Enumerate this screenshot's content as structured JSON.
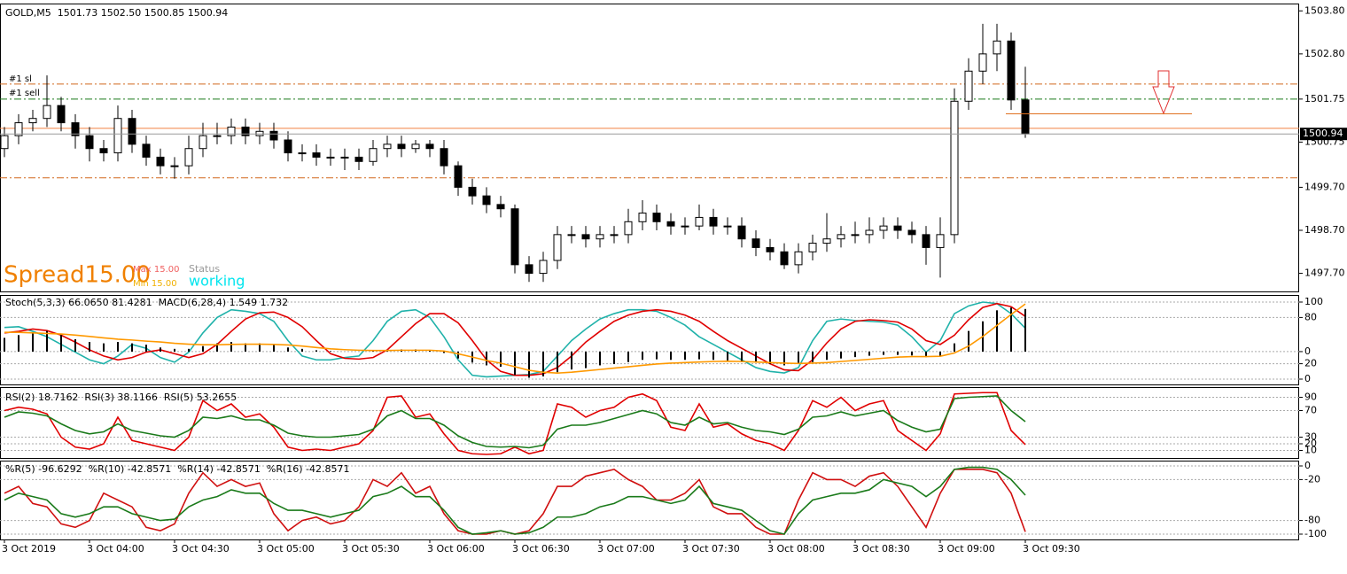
{
  "chart_data": [
    {
      "type": "candlestick",
      "header": "GOLD,M5  1501.73 1502.50 1500.85 1500.94",
      "order_labels": [
        "#1 sl",
        "#1 sell"
      ],
      "spread": "Spread15.00",
      "max": "Max 15.00",
      "min": "Min 15.00",
      "status": "Status",
      "status_value": "working",
      "ylim": [
        1497.3,
        1503.95
      ],
      "yticks": [
        {
          "value": 1503.8,
          "label": "1503.80"
        },
        {
          "value": 1502.8,
          "label": "1502.80"
        },
        1501.75,
        1500.75,
        {
          "value": 1499.7,
          "label": "1499.70"
        },
        {
          "value": 1498.7,
          "label": "1498.70"
        },
        {
          "value": 1497.7,
          "label": "1497.70"
        }
      ],
      "levels": [
        {
          "value": 1502.1,
          "color": "#d2691e",
          "style": "dashdot"
        },
        {
          "value": 1501.75,
          "color": "#1a7a1a",
          "style": "dashdot"
        },
        {
          "value": 1501.07,
          "color": "#f08040",
          "style": "solid"
        },
        {
          "value": 1499.92,
          "color": "#d2691e",
          "style": "dashdot"
        }
      ],
      "open": [
        1500.6,
        1500.9,
        1501.2,
        1501.3,
        1501.6,
        1501.2,
        1500.9,
        1500.6,
        1500.5,
        1501.3,
        1500.7,
        1500.4,
        1500.2,
        1500.2,
        1500.6,
        1500.9,
        1500.9,
        1501.1,
        1500.9,
        1501.0,
        1500.8,
        1500.5,
        1500.5,
        1500.4,
        1500.4,
        1500.4,
        1500.3,
        1500.6,
        1500.7,
        1500.6,
        1500.7,
        1500.6,
        1500.2,
        1499.7,
        1499.5,
        1499.3,
        1499.2,
        1497.9,
        1497.7,
        1498.0,
        1498.6,
        1498.6,
        1498.5,
        1498.6,
        1498.6,
        1498.9,
        1499.1,
        1498.9,
        1498.8,
        1498.8,
        1499.0,
        1498.8,
        1498.8,
        1498.5,
        1498.3,
        1498.2,
        1497.9,
        1498.2,
        1498.4,
        1498.5,
        1498.6,
        1498.6,
        1498.7,
        1498.8,
        1498.7,
        1498.6,
        1498.3,
        1498.6,
        1501.7,
        1502.4,
        1502.8,
        1503.1,
        1501.73
      ],
      "high": [
        1501.1,
        1501.4,
        1501.5,
        1502.3,
        1501.8,
        1501.4,
        1501.1,
        1500.8,
        1501.6,
        1501.5,
        1500.9,
        1500.6,
        1500.4,
        1500.9,
        1501.2,
        1501.2,
        1501.3,
        1501.3,
        1501.2,
        1501.2,
        1501.0,
        1500.7,
        1500.7,
        1500.6,
        1500.6,
        1500.6,
        1500.8,
        1500.9,
        1500.9,
        1500.8,
        1500.8,
        1500.8,
        1500.3,
        1499.9,
        1499.7,
        1499.5,
        1499.3,
        1498.1,
        1498.2,
        1498.8,
        1498.8,
        1498.8,
        1498.8,
        1498.8,
        1499.2,
        1499.4,
        1499.3,
        1499.1,
        1499.0,
        1499.3,
        1499.2,
        1499.0,
        1499.0,
        1498.7,
        1498.5,
        1498.4,
        1498.4,
        1498.6,
        1499.1,
        1498.8,
        1498.9,
        1499.0,
        1499.0,
        1499.0,
        1498.9,
        1498.8,
        1499.0,
        1502.0,
        1502.7,
        1503.5,
        1503.5,
        1503.3,
        1502.5
      ],
      "low": [
        1500.4,
        1500.7,
        1501.0,
        1501.1,
        1501.0,
        1500.6,
        1500.3,
        1500.3,
        1500.3,
        1500.5,
        1500.2,
        1500.0,
        1499.9,
        1500.0,
        1500.4,
        1500.7,
        1500.7,
        1500.7,
        1500.7,
        1500.6,
        1500.3,
        1500.3,
        1500.2,
        1500.2,
        1500.1,
        1500.1,
        1500.2,
        1500.4,
        1500.4,
        1500.5,
        1500.4,
        1500.0,
        1499.5,
        1499.3,
        1499.1,
        1499.0,
        1497.7,
        1497.5,
        1497.5,
        1497.8,
        1498.4,
        1498.3,
        1498.3,
        1498.4,
        1498.4,
        1498.7,
        1498.7,
        1498.6,
        1498.6,
        1498.7,
        1498.6,
        1498.6,
        1498.3,
        1498.1,
        1498.0,
        1497.8,
        1497.7,
        1498.0,
        1498.2,
        1498.3,
        1498.4,
        1498.4,
        1498.5,
        1498.5,
        1498.4,
        1497.9,
        1497.6,
        1498.4,
        1501.5,
        1502.1,
        1502.4,
        1501.5,
        1500.85
      ],
      "close": [
        1500.9,
        1501.2,
        1501.3,
        1501.6,
        1501.2,
        1500.9,
        1500.6,
        1500.5,
        1501.3,
        1500.7,
        1500.4,
        1500.2,
        1500.2,
        1500.6,
        1500.9,
        1500.9,
        1501.1,
        1500.9,
        1501.0,
        1500.8,
        1500.5,
        1500.5,
        1500.4,
        1500.4,
        1500.4,
        1500.3,
        1500.6,
        1500.7,
        1500.6,
        1500.7,
        1500.6,
        1500.2,
        1499.7,
        1499.5,
        1499.3,
        1499.2,
        1497.9,
        1497.7,
        1498.0,
        1498.6,
        1498.6,
        1498.5,
        1498.6,
        1498.6,
        1498.9,
        1499.1,
        1498.9,
        1498.8,
        1498.8,
        1499.0,
        1498.8,
        1498.8,
        1498.5,
        1498.3,
        1498.2,
        1497.9,
        1498.2,
        1498.4,
        1498.5,
        1498.6,
        1498.6,
        1498.7,
        1498.8,
        1498.7,
        1498.6,
        1498.3,
        1498.6,
        1501.7,
        1502.4,
        1502.8,
        1503.1,
        1501.73,
        1500.94
      ]
    },
    {
      "type": "line",
      "header": "Stoch(5,3,3) 66.0650 81.4281  MACD(6,28,4) 1.549 1.732",
      "ylim": [
        0,
        100
      ],
      "yticks": [
        0,
        20,
        80,
        100
      ],
      "y2lim": [
        -1.0,
        1.8
      ],
      "y2ticks": [
        0
      ],
      "grid": true,
      "series": [
        {
          "color": "#20b2aa",
          "values": [
            67,
            68,
            62,
            55,
            45,
            35,
            25,
            20,
            30,
            45,
            40,
            28,
            22,
            35,
            60,
            80,
            90,
            88,
            85,
            75,
            50,
            30,
            25,
            25,
            28,
            30,
            50,
            75,
            88,
            90,
            80,
            55,
            25,
            5,
            3,
            4,
            5,
            6,
            10,
            30,
            50,
            65,
            78,
            85,
            90,
            90,
            88,
            80,
            70,
            55,
            45,
            35,
            25,
            15,
            10,
            8,
            15,
            50,
            75,
            78,
            76,
            75,
            74,
            70,
            55,
            35,
            50,
            85,
            95,
            100,
            98,
            85,
            66.065
          ]
        },
        {
          "color": "#e00000",
          "values": [
            60,
            62,
            65,
            63,
            57,
            48,
            38,
            30,
            25,
            28,
            35,
            38,
            33,
            28,
            33,
            45,
            62,
            78,
            86,
            87,
            80,
            68,
            50,
            33,
            27,
            26,
            28,
            38,
            55,
            72,
            85,
            85,
            73,
            50,
            25,
            10,
            5,
            5,
            7,
            15,
            30,
            48,
            62,
            75,
            83,
            88,
            90,
            88,
            83,
            75,
            62,
            50,
            40,
            30,
            20,
            12,
            11,
            25,
            47,
            65,
            75,
            77,
            76,
            74,
            65,
            50,
            45,
            57,
            77,
            93,
            98,
            94,
            81.4281
          ]
        },
        {
          "type": "bar",
          "axis": "y2",
          "color": "#000000",
          "values": [
            0.5,
            0.6,
            0.7,
            0.75,
            0.6,
            0.45,
            0.35,
            0.3,
            0.35,
            0.3,
            0.25,
            0.15,
            0.1,
            0.1,
            0.2,
            0.3,
            0.35,
            0.3,
            0.3,
            0.25,
            0.15,
            0.1,
            0.05,
            0.02,
            0,
            0,
            0.02,
            0.05,
            0.08,
            0.08,
            0.05,
            -0.05,
            -0.25,
            -0.4,
            -0.5,
            -0.55,
            -0.85,
            -0.95,
            -0.9,
            -0.75,
            -0.65,
            -0.6,
            -0.5,
            -0.45,
            -0.38,
            -0.3,
            -0.28,
            -0.3,
            -0.3,
            -0.28,
            -0.3,
            -0.32,
            -0.38,
            -0.4,
            -0.45,
            -0.5,
            -0.45,
            -0.38,
            -0.3,
            -0.25,
            -0.2,
            -0.15,
            -0.12,
            -0.12,
            -0.14,
            -0.2,
            -0.15,
            0.3,
            0.75,
            1.1,
            1.5,
            1.6,
            1.549
          ]
        },
        {
          "axis": "y2",
          "color": "#ff9900",
          "values": [
            0.7,
            0.7,
            0.68,
            0.66,
            0.64,
            0.6,
            0.55,
            0.5,
            0.45,
            0.42,
            0.38,
            0.35,
            0.3,
            0.27,
            0.25,
            0.25,
            0.26,
            0.27,
            0.27,
            0.26,
            0.24,
            0.2,
            0.15,
            0.1,
            0.07,
            0.05,
            0.04,
            0.04,
            0.05,
            0.05,
            0.05,
            0.02,
            -0.08,
            -0.2,
            -0.32,
            -0.42,
            -0.55,
            -0.68,
            -0.75,
            -0.78,
            -0.75,
            -0.7,
            -0.65,
            -0.6,
            -0.55,
            -0.5,
            -0.45,
            -0.42,
            -0.4,
            -0.38,
            -0.36,
            -0.35,
            -0.36,
            -0.38,
            -0.4,
            -0.42,
            -0.43,
            -0.42,
            -0.4,
            -0.36,
            -0.32,
            -0.28,
            -0.24,
            -0.2,
            -0.18,
            -0.18,
            -0.17,
            -0.05,
            0.2,
            0.55,
            0.95,
            1.35,
            1.732
          ]
        }
      ]
    },
    {
      "type": "line",
      "header": "RSI(2) 18.7162  RSI(3) 38.1166  RSI(5) 53.2655",
      "ylim": [
        0,
        100
      ],
      "yticks": [
        10,
        20,
        30,
        70,
        90
      ],
      "grid": true,
      "series": [
        {
          "color": "#e00000",
          "values": [
            70,
            75,
            72,
            65,
            30,
            15,
            12,
            20,
            60,
            25,
            20,
            15,
            10,
            30,
            85,
            70,
            80,
            60,
            65,
            45,
            15,
            10,
            12,
            10,
            15,
            20,
            40,
            90,
            92,
            60,
            65,
            35,
            10,
            5,
            4,
            5,
            15,
            5,
            10,
            80,
            75,
            60,
            70,
            75,
            90,
            95,
            85,
            45,
            40,
            80,
            45,
            50,
            35,
            25,
            20,
            10,
            40,
            85,
            75,
            90,
            70,
            80,
            85,
            40,
            25,
            10,
            35,
            95,
            96,
            97,
            97,
            40,
            18.7162
          ]
        },
        {
          "color": "#1a7a1a",
          "values": [
            60,
            68,
            66,
            62,
            50,
            40,
            35,
            38,
            50,
            40,
            36,
            32,
            30,
            40,
            60,
            58,
            62,
            56,
            56,
            48,
            36,
            32,
            30,
            30,
            32,
            34,
            42,
            62,
            70,
            58,
            58,
            48,
            32,
            22,
            16,
            15,
            16,
            14,
            18,
            42,
            48,
            48,
            52,
            58,
            64,
            70,
            65,
            52,
            48,
            60,
            50,
            52,
            45,
            40,
            38,
            34,
            42,
            60,
            62,
            68,
            62,
            66,
            70,
            55,
            45,
            38,
            42,
            88,
            90,
            91,
            92,
            70,
            53.2655
          ]
        }
      ]
    },
    {
      "type": "line",
      "header": "%R(5) -96.6292  %R(10) -42.8571  %R(14) -42.8571  %R(16) -42.8571",
      "ylim": [
        -100,
        0
      ],
      "yticks": [
        0,
        -20,
        -80,
        -100
      ],
      "grid": true,
      "categories": [
        "3 Oct 2019",
        null,
        null,
        null,
        null,
        null,
        "3 Oct 04:00",
        null,
        null,
        null,
        null,
        null,
        "3 Oct 04:30",
        null,
        null,
        null,
        null,
        null,
        "3 Oct 05:00",
        null,
        null,
        null,
        null,
        null,
        "3 Oct 05:30",
        null,
        null,
        null,
        null,
        null,
        "3 Oct 06:00",
        null,
        null,
        null,
        null,
        null,
        "3 Oct 06:30",
        null,
        null,
        null,
        null,
        null,
        "3 Oct 07:00",
        null,
        null,
        null,
        null,
        null,
        "3 Oct 07:30",
        null,
        null,
        null,
        null,
        null,
        "3 Oct 08:00",
        null,
        null,
        null,
        null,
        null,
        "3 Oct 08:30",
        null,
        null,
        null,
        null,
        null,
        "3 Oct 09:00",
        null,
        null,
        null,
        null,
        null,
        "3 Oct 09:30"
      ],
      "series": [
        {
          "color": "#d01010",
          "values": [
            -40,
            -30,
            -55,
            -60,
            -85,
            -90,
            -80,
            -40,
            -50,
            -60,
            -90,
            -95,
            -85,
            -40,
            -10,
            -30,
            -20,
            -30,
            -25,
            -70,
            -95,
            -80,
            -75,
            -85,
            -80,
            -60,
            -20,
            -30,
            -10,
            -40,
            -30,
            -70,
            -95,
            -100,
            -100,
            -95,
            -100,
            -95,
            -70,
            -30,
            -30,
            -15,
            -10,
            -5,
            -20,
            -30,
            -50,
            -50,
            -40,
            -20,
            -60,
            -70,
            -70,
            -90,
            -100,
            -100,
            -50,
            -10,
            -20,
            -20,
            -30,
            -15,
            -10,
            -30,
            -60,
            -90,
            -40,
            -5,
            -5,
            -5,
            -10,
            -40,
            -96.6292
          ]
        },
        {
          "color": "#1a7a1a",
          "values": [
            -50,
            -40,
            -45,
            -50,
            -70,
            -75,
            -70,
            -60,
            -60,
            -70,
            -75,
            -80,
            -78,
            -60,
            -50,
            -45,
            -35,
            -40,
            -40,
            -55,
            -65,
            -65,
            -70,
            -75,
            -70,
            -65,
            -45,
            -40,
            -30,
            -45,
            -45,
            -65,
            -90,
            -100,
            -98,
            -95,
            -100,
            -98,
            -90,
            -75,
            -75,
            -70,
            -60,
            -55,
            -45,
            -45,
            -50,
            -55,
            -50,
            -30,
            -55,
            -60,
            -65,
            -80,
            -95,
            -100,
            -70,
            -50,
            -45,
            -40,
            -40,
            -35,
            -20,
            -25,
            -30,
            -45,
            -30,
            -5,
            -2,
            -2,
            -5,
            -20,
            -42.8571
          ]
        }
      ]
    }
  ]
}
